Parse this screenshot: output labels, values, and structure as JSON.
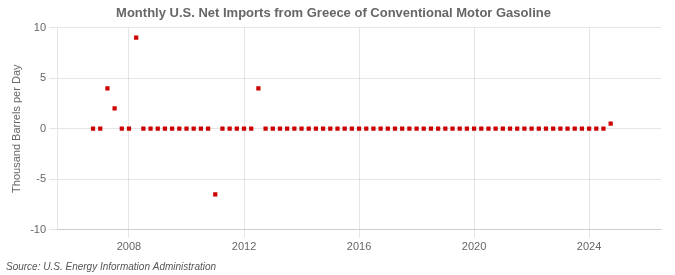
{
  "chart_data": {
    "type": "scatter",
    "title": "Monthly U.S. Net Imports from Greece of Conventional Motor Gasoline",
    "ylabel": "Thousand Barrels per Day",
    "source": "Source: U.S. Energy Information Administration",
    "x": [
      2006.75,
      2007.0,
      2007.25,
      2007.5,
      2007.75,
      2008.0,
      2008.25,
      2008.5,
      2008.75,
      2009.0,
      2009.25,
      2009.5,
      2009.75,
      2010.0,
      2010.25,
      2010.5,
      2010.75,
      2011.0,
      2011.25,
      2011.5,
      2011.75,
      2012.0,
      2012.25,
      2012.5,
      2012.75,
      2013.0,
      2013.25,
      2013.5,
      2013.75,
      2014.0,
      2014.25,
      2014.5,
      2014.75,
      2015.0,
      2015.25,
      2015.5,
      2015.75,
      2016.0,
      2016.25,
      2016.5,
      2016.75,
      2017.0,
      2017.25,
      2017.5,
      2017.75,
      2018.0,
      2018.25,
      2018.5,
      2018.75,
      2019.0,
      2019.25,
      2019.5,
      2019.75,
      2020.0,
      2020.25,
      2020.5,
      2020.75,
      2021.0,
      2021.25,
      2021.5,
      2021.75,
      2022.0,
      2022.25,
      2022.5,
      2022.75,
      2023.0,
      2023.25,
      2023.5,
      2023.75,
      2024.0,
      2024.25,
      2024.5,
      2024.75
    ],
    "values": [
      0.0,
      0.0,
      4.0,
      2.0,
      0.0,
      0.0,
      9.0,
      0.0,
      0.0,
      0.0,
      0.0,
      0.0,
      0.0,
      0.0,
      0.0,
      0.0,
      0.0,
      -6.5,
      0.0,
      0.0,
      0.0,
      0.0,
      0.0,
      4.0,
      0.0,
      0.0,
      0.0,
      0.0,
      0.0,
      0.0,
      0.0,
      0.0,
      0.0,
      0.0,
      0.0,
      0.0,
      0.0,
      0.0,
      0.0,
      0.0,
      0.0,
      0.0,
      0.0,
      0.0,
      0.0,
      0.0,
      0.0,
      0.0,
      0.0,
      0.0,
      0.0,
      0.0,
      0.0,
      0.0,
      0.0,
      0.0,
      0.0,
      0.0,
      0.0,
      0.0,
      0.0,
      0.0,
      0.0,
      0.0,
      0.0,
      0.0,
      0.0,
      0.0,
      0.0,
      0.0,
      0.0,
      0.0,
      0.5
    ],
    "color": "#cc0000",
    "marker": "square",
    "xlim": [
      2005.5,
      2026.5
    ],
    "xticks": [
      2008,
      2012,
      2016,
      2020,
      2024
    ],
    "ylim": [
      -10,
      10
    ],
    "yticks": [
      -10,
      -5,
      0,
      5,
      10
    ],
    "grid": true
  }
}
